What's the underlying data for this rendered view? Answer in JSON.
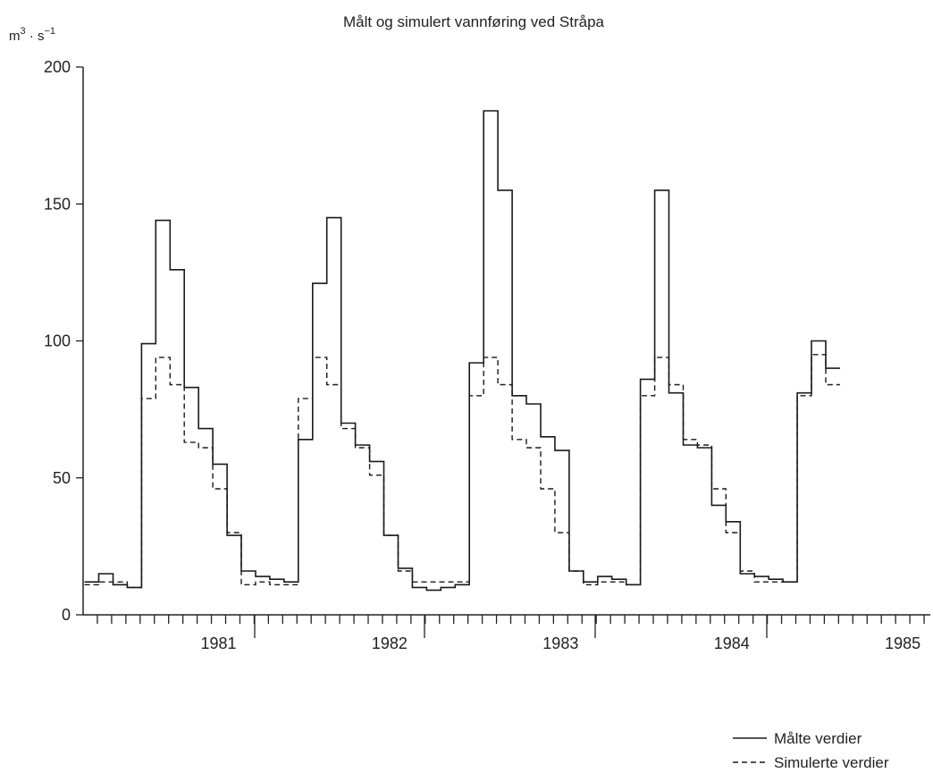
{
  "chart_data": {
    "type": "line",
    "title": "Målt og simulert vannføring ved Stråpa",
    "ylabel_base": "m",
    "ylabel_sup1": "3",
    "ylabel_mid": " · s",
    "ylabel_sup2": "−1",
    "ylim": [
      0,
      200
    ],
    "yticks": [
      "0",
      "50",
      "100",
      "150",
      "200"
    ],
    "xlim_months": [
      0,
      50
    ],
    "x_unit": "month index (steps, Sep 1980 onward)",
    "years": [
      "1981",
      "1982",
      "1983",
      "1984",
      "1985"
    ],
    "legend_position": "bottom-right",
    "series": [
      {
        "name": "Målte verdier",
        "style": "solid",
        "values": [
          12,
          15,
          11,
          10,
          99,
          144,
          126,
          83,
          68,
          55,
          29,
          16,
          14,
          13,
          12,
          64,
          121,
          145,
          70,
          62,
          56,
          29,
          17,
          10,
          9,
          10,
          11,
          92,
          184,
          155,
          80,
          77,
          65,
          60,
          16,
          12,
          14,
          13,
          11,
          86,
          155,
          81,
          62,
          61,
          40,
          34,
          15,
          14,
          13,
          12,
          81,
          100,
          90
        ]
      },
      {
        "name": "Simulerte verdier",
        "style": "dashed",
        "values": [
          11,
          12,
          12,
          10,
          79,
          94,
          84,
          63,
          61,
          46,
          30,
          11,
          12,
          11,
          11,
          79,
          94,
          84,
          68,
          61,
          51,
          29,
          16,
          12,
          12,
          12,
          12,
          80,
          94,
          84,
          64,
          61,
          46,
          30,
          16,
          11,
          12,
          12,
          11,
          80,
          94,
          84,
          64,
          62,
          46,
          30,
          16,
          12,
          12,
          12,
          80,
          95,
          84
        ]
      }
    ]
  }
}
